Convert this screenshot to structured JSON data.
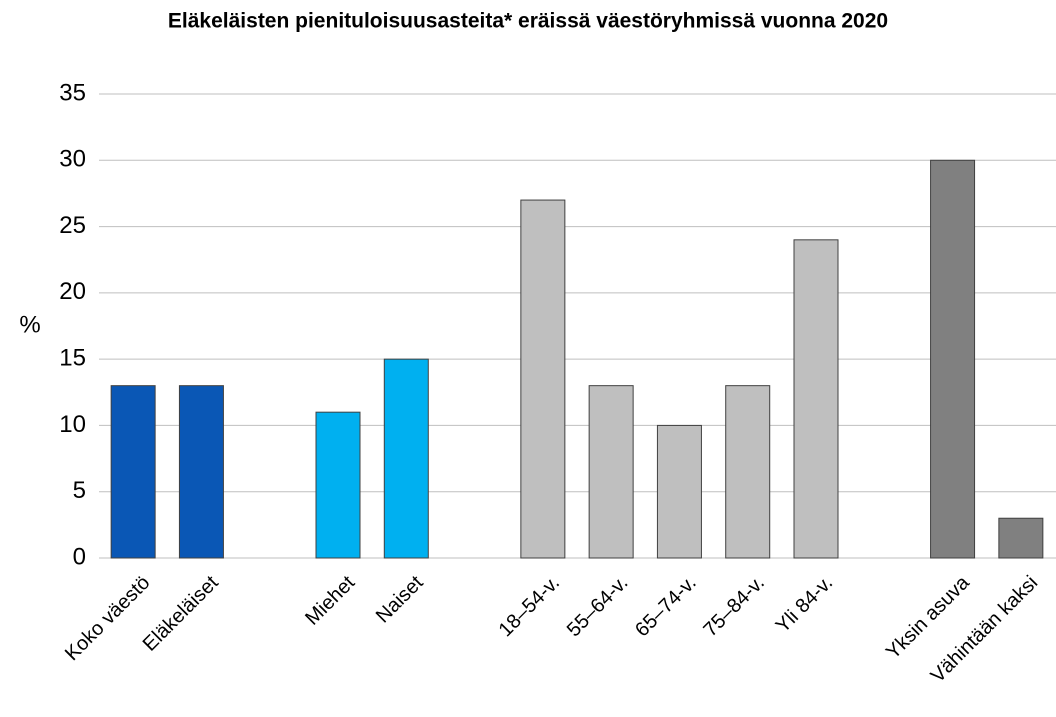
{
  "chart_data": {
    "type": "bar",
    "title": "Eläkeläisten pienituloisuusasteita* eräissä väestöryhmissä vuonna 2020",
    "y_label": "%",
    "categories": [
      "Koko väestö",
      "Eläkeläiset",
      null,
      "Miehet",
      "Naiset",
      null,
      "18–54-v.",
      "55–64-v.",
      "65–74-v.",
      "75–84-v.",
      "Yli 84-v.",
      null,
      "Yksin asuva",
      "Vähintään kaksi"
    ],
    "values": [
      13,
      13,
      null,
      11,
      15,
      null,
      27,
      13,
      10,
      13,
      24,
      null,
      30,
      3
    ],
    "colors": [
      "#0a57b5",
      "#0a57b5",
      null,
      "#00b0f0",
      "#00b0f0",
      null,
      "#bfbfbf",
      "#bfbfbf",
      "#bfbfbf",
      "#bfbfbf",
      "#bfbfbf",
      null,
      "#808080",
      "#808080"
    ],
    "ylim": [
      0,
      35
    ],
    "yticks": [
      0,
      5,
      10,
      15,
      20,
      25,
      30,
      35
    ],
    "grid": true
  }
}
